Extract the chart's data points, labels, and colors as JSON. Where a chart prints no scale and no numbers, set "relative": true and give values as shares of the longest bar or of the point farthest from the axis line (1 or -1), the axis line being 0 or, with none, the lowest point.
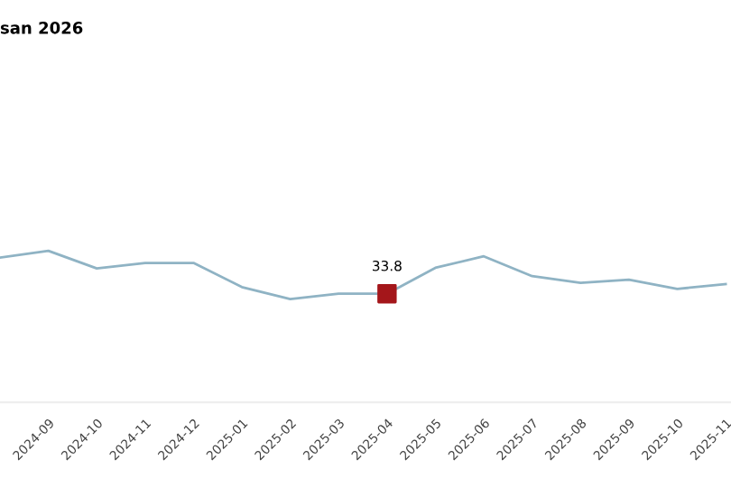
{
  "chart_data": {
    "type": "line",
    "title": "san 2026",
    "relative": true,
    "categories": [
      null,
      "2024-09",
      "2024-10",
      "2024-11",
      "2024-12",
      "2025-01",
      "2025-02",
      "2025-03",
      "2025-04",
      "2025-05",
      "2025-06",
      "2025-07",
      "2025-08",
      "2025-09",
      "2025-10",
      "2025-11"
    ],
    "series": [
      {
        "color": "#8fb3c4",
        "values": [
          0.956,
          1,
          0.884,
          0.92,
          0.92,
          0.761,
          0.681,
          0.717,
          0.717,
          0.888,
          0.964,
          0.833,
          0.789,
          0.809,
          0.749,
          0.78
        ]
      },
      {
        "type": "scatter",
        "color": "#a4161a",
        "marker": "square",
        "values": [
          null,
          null,
          null,
          null,
          null,
          null,
          null,
          null,
          0.717,
          null,
          null,
          null,
          null,
          null,
          null,
          null
        ]
      }
    ],
    "annotations": [
      "33.8"
    ],
    "grid": false,
    "legend": false
  }
}
